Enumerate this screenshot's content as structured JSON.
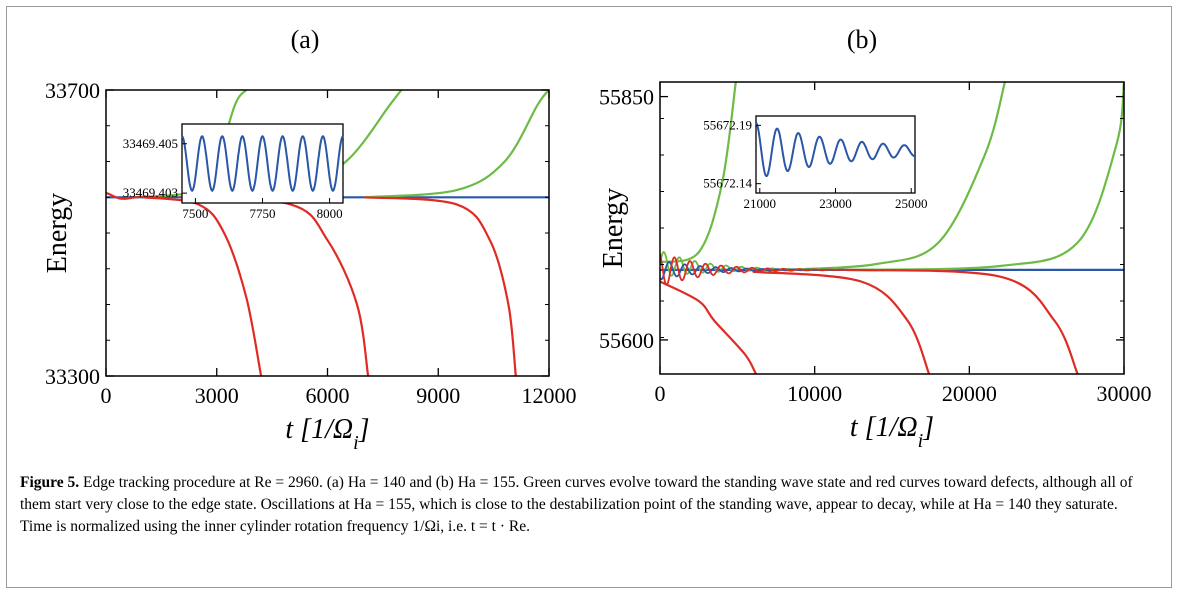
{
  "chart_data": [
    {
      "type": "line",
      "panel_label": "(a)",
      "xlabel": "t [1/Ω_i]",
      "ylabel": "Energy",
      "xlim": [
        0,
        12000
      ],
      "ylim": [
        33300,
        33700
      ],
      "xticks": [
        "0",
        "3000",
        "6000",
        "9000",
        "12000"
      ],
      "yticks": [
        "33300",
        "33700"
      ],
      "edge_state_energy": 33550,
      "series": [
        {
          "color": "#2a57a8",
          "x": [
            0,
            12000
          ],
          "y": [
            33550,
            33550
          ]
        },
        {
          "color": "#6dbb46",
          "x": [
            1000,
            2500,
            3000,
            3500,
            3800
          ],
          "y": [
            33550,
            33560,
            33600,
            33680,
            33700
          ]
        },
        {
          "color": "#6dbb46",
          "x": [
            2000,
            5000,
            6500,
            7700,
            8000
          ],
          "y": [
            33550,
            33560,
            33600,
            33680,
            33700
          ]
        },
        {
          "color": "#6dbb46",
          "x": [
            7000,
            9500,
            10800,
            11700,
            12000
          ],
          "y": [
            33550,
            33560,
            33600,
            33680,
            33700
          ]
        },
        {
          "color": "#e02b24",
          "x": [
            1000,
            2500,
            3200,
            3800,
            4200
          ],
          "y": [
            33550,
            33540,
            33500,
            33410,
            33300
          ]
        },
        {
          "color": "#e02b24",
          "x": [
            2000,
            5000,
            6000,
            6800,
            7100
          ],
          "y": [
            33550,
            33540,
            33490,
            33400,
            33300
          ]
        },
        {
          "color": "#e02b24",
          "x": [
            7000,
            9500,
            10400,
            10900,
            11100
          ],
          "y": [
            33550,
            33540,
            33490,
            33400,
            33300
          ]
        }
      ],
      "inset": {
        "xlim": [
          7450,
          8050
        ],
        "ylim": [
          33469.4026,
          33469.4058
        ],
        "xticks": [
          "7500",
          "7750",
          "8000"
        ],
        "yticks": [
          "33469.403",
          "33469.405"
        ],
        "mean": 33469.4042,
        "amplitude": 0.0011,
        "period": 75,
        "decay_per_1000": 0
      }
    },
    {
      "type": "line",
      "panel_label": "(b)",
      "xlabel": "t [1/Ω_i]",
      "ylabel": "Energy",
      "xlim": [
        0,
        30000
      ],
      "ylim": [
        55565,
        55865
      ],
      "xticks": [
        "0",
        "10000",
        "20000",
        "30000"
      ],
      "yticks": [
        "55600",
        "55850"
      ],
      "edge_state_energy": 55672,
      "series": [
        {
          "color": "#2a57a8",
          "x": [
            0,
            30000
          ],
          "y": [
            55672,
            55672
          ]
        },
        {
          "color": "#6dbb46",
          "x": [
            0,
            2500,
            4000,
            4900
          ],
          "y": [
            55680,
            55690,
            55760,
            55865
          ]
        },
        {
          "color": "#6dbb46",
          "x": [
            8000,
            14000,
            18000,
            21000,
            22300
          ],
          "y": [
            55672,
            55678,
            55700,
            55790,
            55865
          ]
        },
        {
          "color": "#6dbb46",
          "x": [
            12000,
            22000,
            27000,
            29500,
            30000
          ],
          "y": [
            55672,
            55676,
            55700,
            55800,
            55865
          ]
        },
        {
          "color": "#e02b24",
          "x": [
            0,
            2500,
            3500,
            5500,
            6200
          ],
          "y": [
            55660,
            55640,
            55620,
            55585,
            55565
          ]
        },
        {
          "color": "#e02b24",
          "x": [
            6000,
            13000,
            16000,
            17400
          ],
          "y": [
            55670,
            55660,
            55620,
            55565
          ]
        },
        {
          "color": "#e02b24",
          "x": [
            12000,
            22000,
            25500,
            27000
          ],
          "y": [
            55672,
            55665,
            55620,
            55565
          ]
        }
      ],
      "inset": {
        "xlim": [
          20900,
          25100
        ],
        "ylim": [
          55672.132,
          55672.198
        ],
        "xticks": [
          "21000",
          "23000",
          "25000"
        ],
        "yticks": [
          "55672.14",
          "55672.19"
        ],
        "mean": 55672.168,
        "amplitude": 0.024,
        "period": 560,
        "decay_per_1000": 0.4
      }
    }
  ],
  "caption": {
    "figure_label": "Figure 5.",
    "text": "Edge tracking procedure at Re = 2960. (a) Ha = 140 and (b) Ha = 155. Green curves evolve toward the standing wave state and red curves toward defects, although all of them start very close to the edge state. Oscillations at Ha = 155, which is close to the destabilization point of the standing wave, appear to decay, while at Ha = 140 they saturate. Time is normalized using the inner cylinder rotation frequency 1/Ωi, i.e. t = t · Re."
  }
}
